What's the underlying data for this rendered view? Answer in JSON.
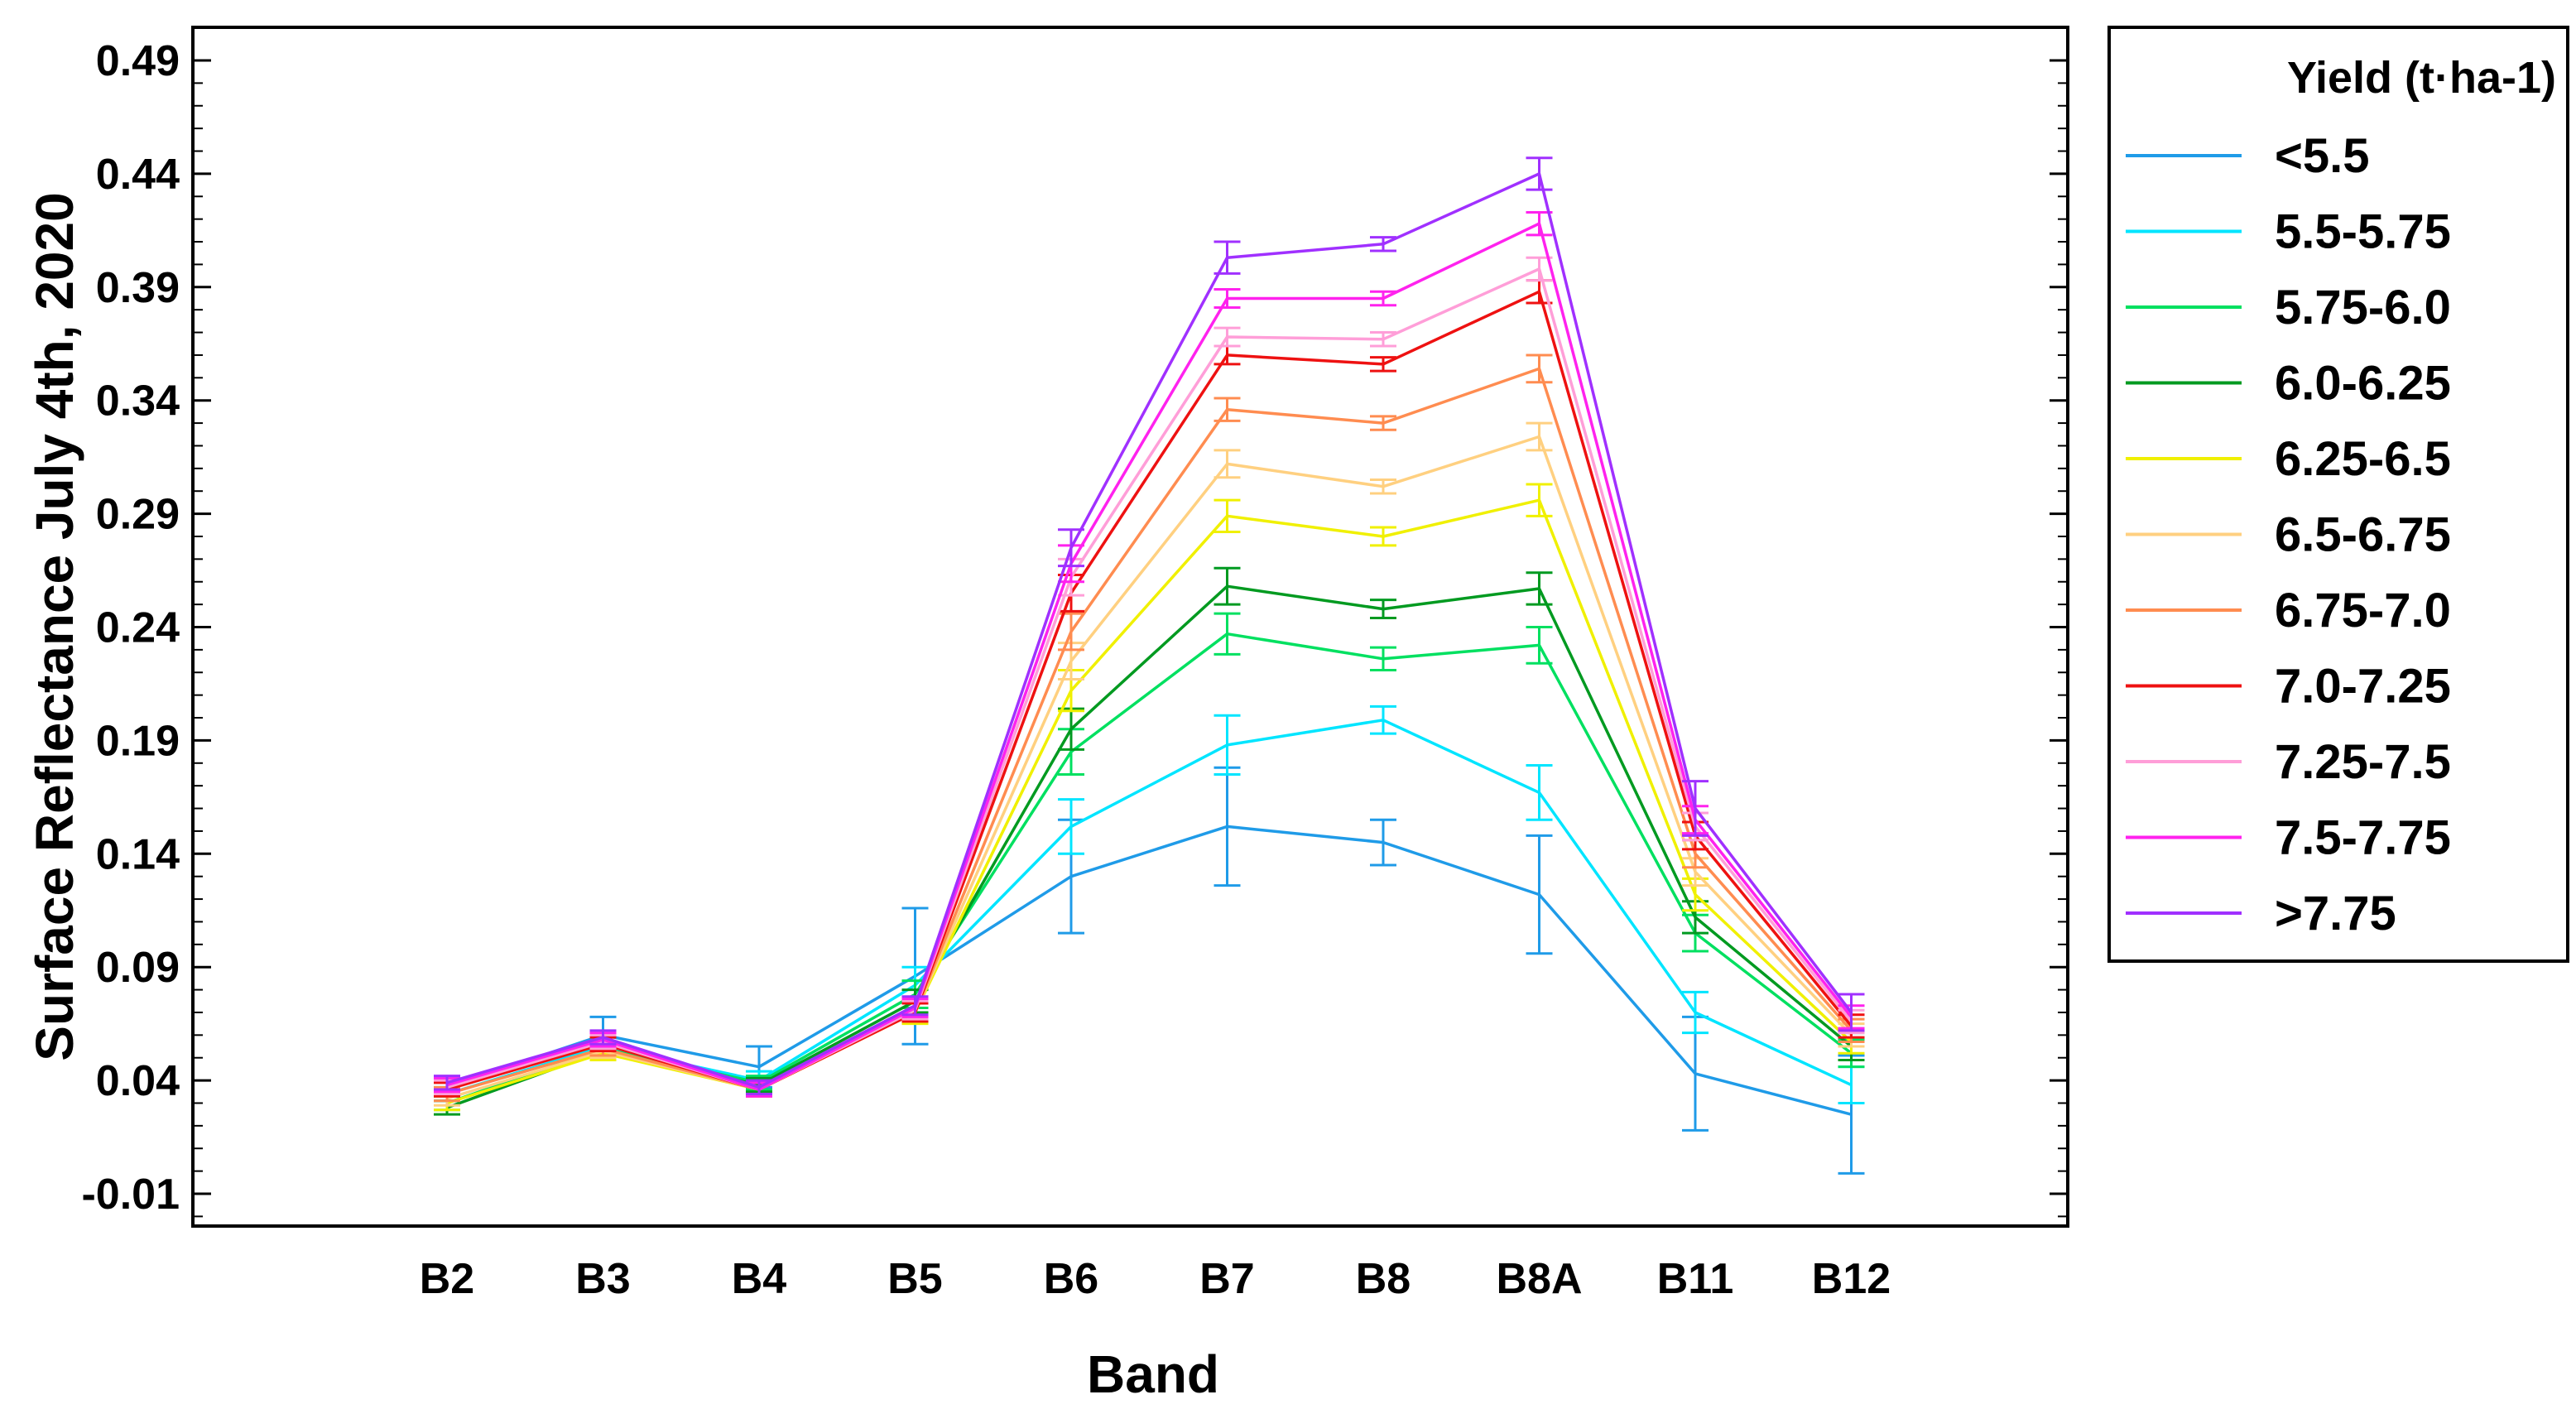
{
  "chart_data": {
    "type": "line",
    "title": "",
    "xlabel": "Band",
    "ylabel": "Surface Reflectance July 4th, 2020",
    "categories": [
      "B2",
      "B3",
      "B4",
      "B5",
      "B6",
      "B7",
      "B8",
      "B8A",
      "B11",
      "B12"
    ],
    "ylim": [
      -0.02,
      0.5
    ],
    "yticks": [
      "-0.01",
      "0.04",
      "0.09",
      "0.14",
      "0.19",
      "0.24",
      "0.29",
      "0.34",
      "0.39",
      "0.44",
      "0.49"
    ],
    "grid": false,
    "legend": {
      "title": "Yield (t·ha-1)",
      "position": "outside-right"
    },
    "series": [
      {
        "name": "<5.5",
        "color": "#1f9be8",
        "values": [
          0.037,
          0.06,
          0.046,
          0.086,
          0.13,
          0.152,
          0.145,
          0.122,
          0.043,
          0.025
        ],
        "errors": [
          0.004,
          0.008,
          0.009,
          0.03,
          0.025,
          0.026,
          0.01,
          0.026,
          0.025,
          0.026
        ]
      },
      {
        "name": "5.5-5.75",
        "color": "#00e5ff",
        "values": [
          0.034,
          0.055,
          0.04,
          0.082,
          0.152,
          0.188,
          0.199,
          0.167,
          0.07,
          0.038
        ],
        "errors": [
          0.003,
          0.004,
          0.004,
          0.008,
          0.012,
          0.013,
          0.006,
          0.012,
          0.009,
          0.008
        ]
      },
      {
        "name": "5.75-6.0",
        "color": "#00e060",
        "values": [
          0.03,
          0.054,
          0.039,
          0.078,
          0.185,
          0.237,
          0.226,
          0.232,
          0.105,
          0.052
        ],
        "errors": [
          0.003,
          0.003,
          0.003,
          0.006,
          0.01,
          0.009,
          0.005,
          0.008,
          0.008,
          0.006
        ]
      },
      {
        "name": "6.0-6.25",
        "color": "#009a20",
        "values": [
          0.028,
          0.053,
          0.038,
          0.075,
          0.195,
          0.258,
          0.248,
          0.257,
          0.112,
          0.055
        ],
        "errors": [
          0.003,
          0.003,
          0.003,
          0.005,
          0.009,
          0.008,
          0.004,
          0.007,
          0.007,
          0.006
        ]
      },
      {
        "name": "6.25-6.5",
        "color": "#f0f000",
        "values": [
          0.03,
          0.052,
          0.036,
          0.07,
          0.212,
          0.289,
          0.28,
          0.296,
          0.122,
          0.057
        ],
        "errors": [
          0.003,
          0.003,
          0.003,
          0.005,
          0.009,
          0.007,
          0.004,
          0.007,
          0.007,
          0.005
        ]
      },
      {
        "name": "6.5-6.75",
        "color": "#ffd080",
        "values": [
          0.032,
          0.053,
          0.036,
          0.07,
          0.225,
          0.312,
          0.302,
          0.324,
          0.132,
          0.06
        ],
        "errors": [
          0.003,
          0.003,
          0.003,
          0.004,
          0.008,
          0.006,
          0.003,
          0.006,
          0.006,
          0.005
        ]
      },
      {
        "name": "6.75-7.0",
        "color": "#ff8c50",
        "values": [
          0.034,
          0.054,
          0.036,
          0.07,
          0.238,
          0.336,
          0.33,
          0.354,
          0.14,
          0.062
        ],
        "errors": [
          0.003,
          0.003,
          0.003,
          0.004,
          0.008,
          0.005,
          0.003,
          0.006,
          0.006,
          0.005
        ]
      },
      {
        "name": "7.0-7.25",
        "color": "#ee1111",
        "values": [
          0.036,
          0.056,
          0.036,
          0.07,
          0.255,
          0.36,
          0.356,
          0.388,
          0.148,
          0.064
        ],
        "errors": [
          0.003,
          0.003,
          0.003,
          0.004,
          0.008,
          0.004,
          0.003,
          0.005,
          0.006,
          0.005
        ]
      },
      {
        "name": "7.25-7.5",
        "color": "#ff9ed8",
        "values": [
          0.037,
          0.057,
          0.036,
          0.071,
          0.262,
          0.368,
          0.367,
          0.398,
          0.152,
          0.066
        ],
        "errors": [
          0.003,
          0.003,
          0.003,
          0.004,
          0.008,
          0.004,
          0.003,
          0.005,
          0.006,
          0.005
        ]
      },
      {
        "name": "7.5-7.75",
        "color": "#ff22ee",
        "values": [
          0.038,
          0.058,
          0.036,
          0.072,
          0.268,
          0.385,
          0.385,
          0.418,
          0.155,
          0.068
        ],
        "errors": [
          0.003,
          0.003,
          0.003,
          0.004,
          0.008,
          0.004,
          0.003,
          0.005,
          0.006,
          0.005
        ]
      },
      {
        "name": ">7.75",
        "color": "#a030ff",
        "values": [
          0.039,
          0.059,
          0.037,
          0.073,
          0.275,
          0.403,
          0.409,
          0.44,
          0.16,
          0.07
        ],
        "errors": [
          0.003,
          0.003,
          0.003,
          0.004,
          0.008,
          0.007,
          0.003,
          0.007,
          0.012,
          0.008
        ]
      }
    ]
  }
}
